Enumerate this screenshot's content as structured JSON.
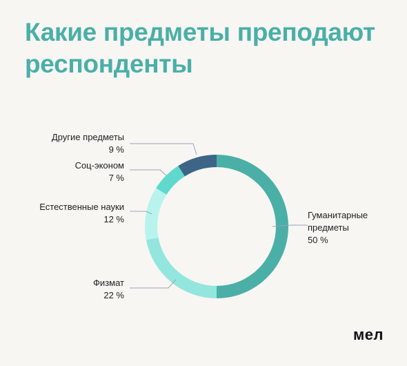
{
  "title": "Какие предметы преподают респонденты",
  "logo": "мел",
  "chart_data": {
    "type": "pie",
    "variant": "donut",
    "unit": "%",
    "title": "Какие предметы преподают респонденты",
    "slices": [
      {
        "name": "Гуманитарные предметы",
        "label_lines": [
          "Гуманитарные",
          "предметы"
        ],
        "value": 50,
        "value_label": "50 %",
        "color": "#4aafa7"
      },
      {
        "name": "Физмат",
        "label_lines": [
          "Физмат"
        ],
        "value": 22,
        "value_label": "22 %",
        "color": "#93e6dd"
      },
      {
        "name": "Естественные науки",
        "label_lines": [
          "Естественные науки"
        ],
        "value": 12,
        "value_label": "12 %",
        "color": "#b8f3ee"
      },
      {
        "name": "Соц-эконом",
        "label_lines": [
          "Соц-эконом"
        ],
        "value": 7,
        "value_label": "7 %",
        "color": "#5fd9cd"
      },
      {
        "name": "Другие предметы",
        "label_lines": [
          "Другие предметы"
        ],
        "value": 9,
        "value_label": "9 %",
        "color": "#3d6587"
      }
    ]
  }
}
